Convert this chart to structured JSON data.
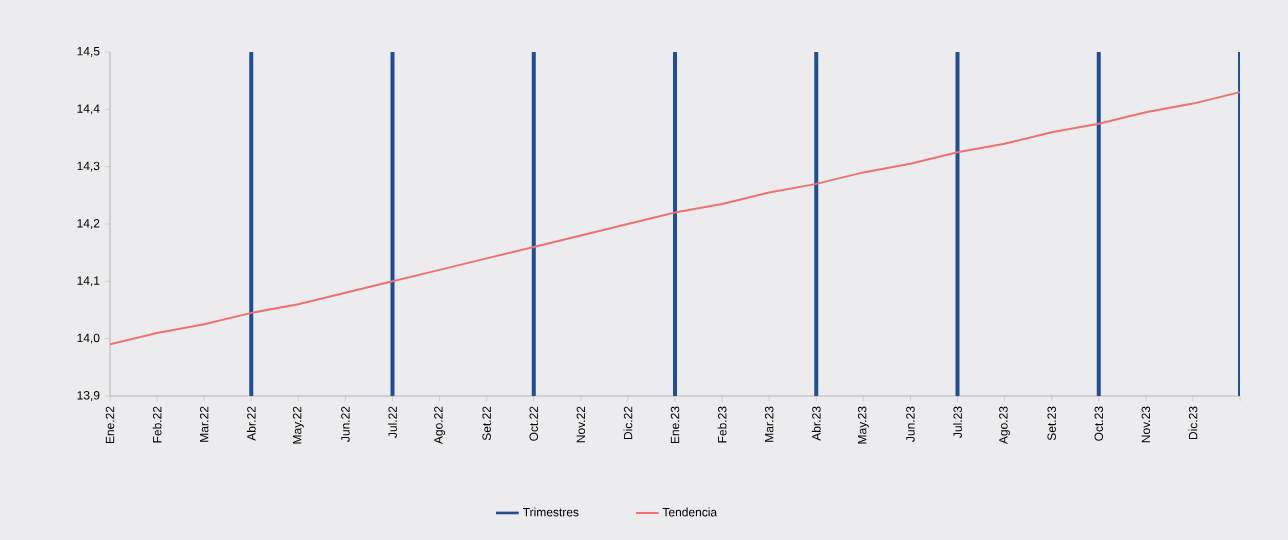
{
  "chart_data": {
    "type": "line",
    "categories": [
      "Ene.22",
      "Feb.22",
      "Mar.22",
      "Abr.22",
      "May.22",
      "Jun.22",
      "Jul.22",
      "Ago.22",
      "Set.22",
      "Oct.22",
      "Nov.22",
      "Dic.22",
      "Ene.23",
      "Feb.23",
      "Mar.23",
      "Abr.23",
      "May.23",
      "Jun.23",
      "Jul.23",
      "Ago.23",
      "Set.23",
      "Oct.23",
      "Nov.23",
      "Dic.23",
      null
    ],
    "series": [
      {
        "name": "Trimestres",
        "type": "bar",
        "color": "#1f4e96",
        "values": [
          null,
          null,
          null,
          14.5,
          null,
          null,
          14.5,
          null,
          null,
          14.5,
          null,
          null,
          14.5,
          null,
          null,
          14.5,
          null,
          null,
          14.5,
          null,
          null,
          14.5,
          null,
          null,
          14.5
        ]
      },
      {
        "name": "Tendencia",
        "color": "#f07070",
        "values": [
          13.99,
          14.01,
          14.025,
          14.045,
          14.06,
          14.08,
          14.1,
          14.12,
          14.14,
          14.16,
          14.18,
          14.2,
          14.22,
          14.235,
          14.255,
          14.27,
          14.29,
          14.305,
          14.325,
          14.34,
          14.36,
          14.375,
          14.395,
          14.41,
          14.43
        ]
      }
    ],
    "ylim": [
      13.9,
      14.5
    ],
    "yticks": [
      {
        "value": 13.9,
        "label": "13,9"
      },
      {
        "value": 14.0,
        "label": "14,0"
      },
      {
        "value": 14.1,
        "label": "14,1"
      },
      {
        "value": 14.2,
        "label": "14,2"
      },
      {
        "value": 14.3,
        "label": "14,3"
      },
      {
        "value": 14.4,
        "label": "14,4"
      },
      {
        "value": 14.5,
        "label": "14,5"
      }
    ],
    "legend": "bottom",
    "marker": "none",
    "line_style": "solid",
    "grid": false
  }
}
